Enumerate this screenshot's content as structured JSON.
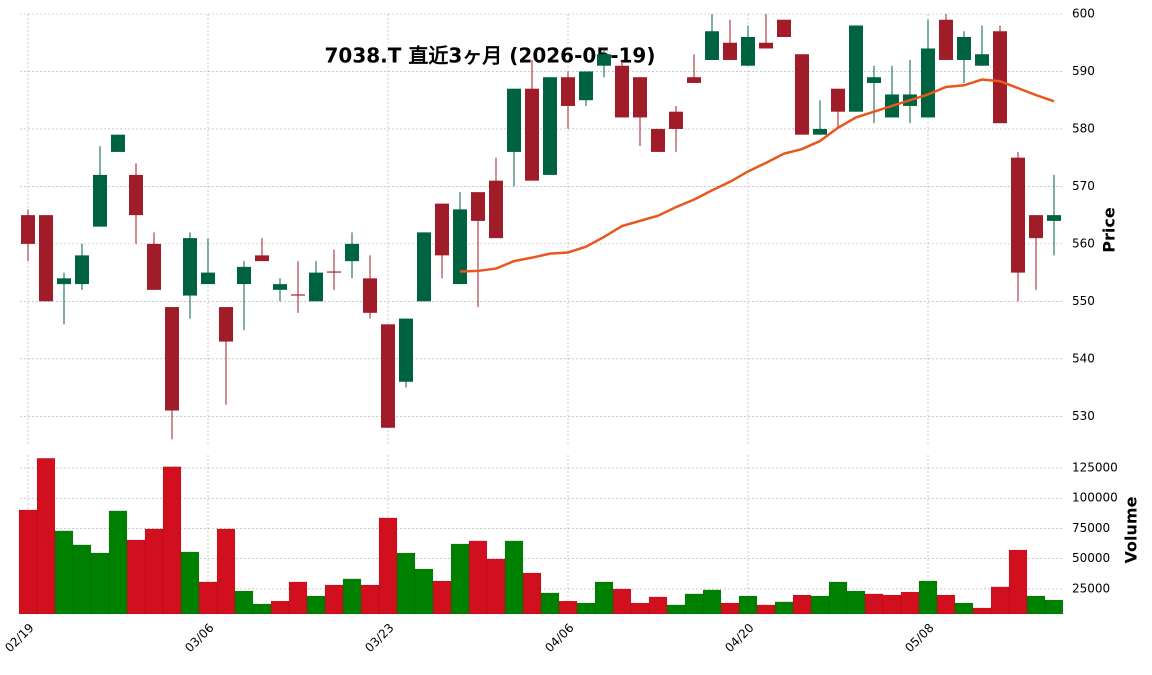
{
  "chart_data": {
    "type": "candlestick",
    "title": "7038.T 直近3ヶ月 (2026-05-19)",
    "categories": [
      "02/19",
      null,
      null,
      null,
      null,
      null,
      null,
      null,
      null,
      null,
      "03/06",
      null,
      null,
      null,
      null,
      null,
      null,
      null,
      null,
      null,
      "03/23",
      null,
      null,
      null,
      null,
      null,
      null,
      null,
      null,
      null,
      "04/06",
      null,
      null,
      null,
      null,
      null,
      null,
      null,
      null,
      null,
      "04/20",
      null,
      null,
      null,
      null,
      null,
      null,
      null,
      null,
      null,
      "05/08",
      null,
      null,
      null,
      null,
      null,
      null,
      null
    ],
    "open": [
      565,
      565,
      553,
      553,
      563,
      576,
      572,
      560,
      549,
      551,
      553,
      549,
      553,
      558,
      552,
      551.2,
      550,
      555.2,
      557,
      554,
      546,
      536,
      550,
      567,
      553,
      569,
      571,
      576,
      587,
      572,
      589,
      585,
      591,
      591,
      589,
      580,
      583,
      589,
      592,
      595,
      591,
      595,
      599,
      593,
      579,
      587,
      583,
      588,
      582,
      584,
      582,
      599,
      592,
      591,
      597,
      575,
      565,
      564
    ],
    "high": [
      566,
      565,
      555,
      560,
      577,
      579,
      574,
      562,
      549,
      562,
      561,
      549,
      557,
      561,
      554,
      557,
      557,
      559,
      562,
      558,
      546,
      547,
      562,
      567,
      569,
      569,
      575,
      587,
      592,
      589,
      590,
      590,
      594,
      592,
      589,
      580,
      584,
      593,
      600,
      599,
      598,
      600,
      599,
      593,
      585,
      587,
      598,
      591,
      591,
      592,
      599,
      600,
      597,
      598,
      598,
      576,
      565,
      572
    ],
    "low": [
      557,
      550,
      546,
      552,
      563,
      576,
      560,
      552,
      526,
      547,
      553,
      532,
      545,
      557,
      550,
      548,
      550,
      552,
      554,
      547,
      528,
      535,
      550,
      554,
      553,
      549,
      561,
      570,
      571,
      572,
      580,
      584,
      589,
      582,
      577,
      576,
      576,
      588,
      592,
      592,
      591,
      594,
      596,
      579,
      579,
      580,
      583,
      581,
      582,
      581,
      582,
      592,
      588,
      591,
      581,
      550,
      552,
      558
    ],
    "close": [
      560,
      550,
      554,
      558,
      572,
      579,
      565,
      552,
      531,
      561,
      555,
      543,
      556,
      557,
      553,
      551,
      555,
      555,
      560,
      548,
      528,
      547,
      562,
      558,
      566,
      564,
      561,
      587,
      571,
      589,
      584,
      590,
      593,
      582,
      582,
      576,
      580,
      588,
      597,
      592,
      596,
      594,
      596,
      579,
      580,
      583,
      598,
      589,
      586,
      586,
      594,
      592,
      596,
      593,
      581,
      555,
      561,
      565
    ],
    "up_color": "#006340",
    "down_color": "#a01c28",
    "ma": {
      "color": "#e8571e",
      "values": [
        null,
        null,
        null,
        null,
        null,
        null,
        null,
        null,
        null,
        null,
        null,
        null,
        null,
        null,
        null,
        null,
        null,
        null,
        null,
        null,
        null,
        null,
        null,
        null,
        555.2,
        555.3,
        555.7,
        557,
        557.6,
        558.3,
        558.5,
        559.5,
        561.2,
        563.1,
        564,
        564.9,
        566.4,
        567.7,
        569.3,
        570.8,
        572.6,
        574.1,
        575.7,
        576.5,
        577.9,
        580.2,
        582,
        583,
        584,
        585,
        586,
        587.3,
        587.6,
        588.6,
        588.3,
        587.1,
        585.9,
        584.8
      ]
    },
    "volume": {
      "values": [
        90300,
        133000,
        73000,
        61400,
        54750,
        89500,
        65500,
        74600,
        126000,
        55600,
        30800,
        74600,
        23300,
        12600,
        15000,
        30800,
        19200,
        28300,
        33300,
        28300,
        83700,
        54700,
        41500,
        31600,
        62200,
        64700,
        49800,
        64700,
        38200,
        21700,
        15000,
        13400,
        30800,
        25000,
        13400,
        18400,
        11800,
        20900,
        24200,
        13400,
        19200,
        11800,
        14300,
        20000,
        19200,
        30800,
        23300,
        20900,
        20000,
        22500,
        31600,
        20000,
        13400,
        9300,
        26700,
        57200,
        19200,
        15900
      ],
      "colors": [
        "#d20f1e",
        "#d20f1e",
        "#008000",
        "#008000",
        "#008000",
        "#008000",
        "#d20f1e",
        "#d20f1e",
        "#d20f1e",
        "#008000",
        "#d20f1e",
        "#d20f1e",
        "#008000",
        "#008000",
        "#d20f1e",
        "#d20f1e",
        "#008000",
        "#d20f1e",
        "#008000",
        "#d20f1e",
        "#d20f1e",
        "#008000",
        "#008000",
        "#d20f1e",
        "#008000",
        "#d20f1e",
        "#d20f1e",
        "#008000",
        "#d20f1e",
        "#008000",
        "#d20f1e",
        "#008000",
        "#008000",
        "#d20f1e",
        "#d20f1e",
        "#d20f1e",
        "#008000",
        "#008000",
        "#008000",
        "#d20f1e",
        "#008000",
        "#d20f1e",
        "#008000",
        "#d20f1e",
        "#008000",
        "#008000",
        "#008000",
        "#d20f1e",
        "#d20f1e",
        "#d20f1e",
        "#008000",
        "#d20f1e",
        "#008000",
        "#d20f1e",
        "#d20f1e",
        "#d20f1e",
        "#008000",
        "#008000"
      ]
    },
    "ylabel": "Price",
    "ylim": [
      525,
      600
    ],
    "yticks": [
      530,
      540,
      550,
      560,
      570,
      580,
      590,
      600
    ],
    "volume_label": "Volume",
    "volume_lim": [
      4300,
      135700
    ],
    "volume_ticks": [
      25000,
      50000,
      75000,
      100000,
      125000
    ],
    "grid": true
  }
}
